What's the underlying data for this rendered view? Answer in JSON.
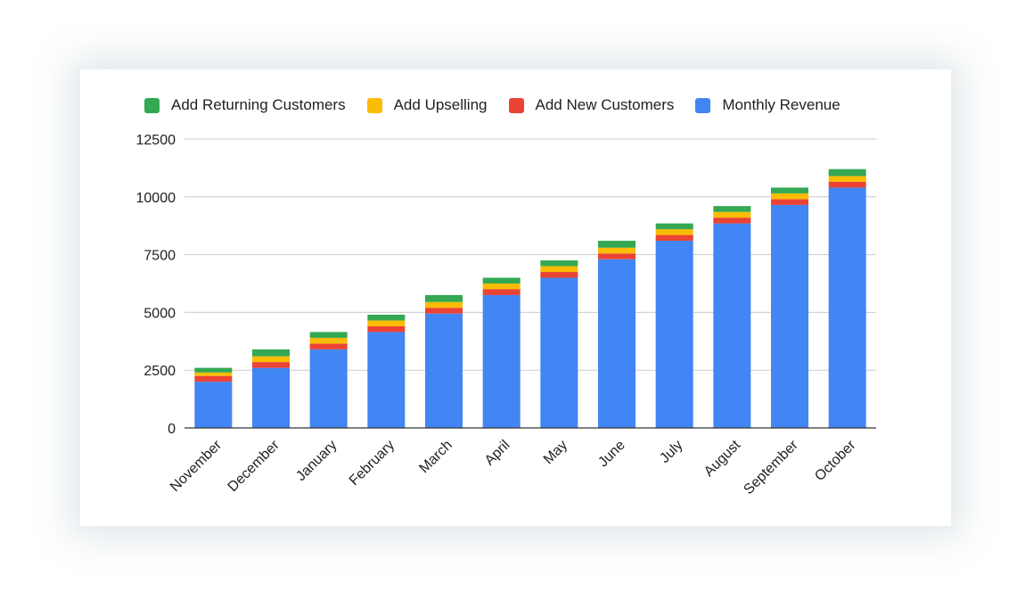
{
  "chart_data": {
    "type": "bar",
    "stacked": true,
    "categories": [
      "November",
      "December",
      "January",
      "February",
      "March",
      "April",
      "May",
      "June",
      "July",
      "August",
      "September",
      "October"
    ],
    "series": [
      {
        "name": "Monthly Revenue",
        "color": "#4285F4",
        "values": [
          2000,
          2600,
          3400,
          4150,
          4950,
          5750,
          6500,
          7300,
          8100,
          8850,
          9650,
          10400
        ]
      },
      {
        "name": "Add New Customers",
        "color": "#EA4335",
        "values": [
          250,
          250,
          250,
          250,
          250,
          250,
          250,
          250,
          250,
          250,
          250,
          250
        ]
      },
      {
        "name": "Add Upselling",
        "color": "#FBBC04",
        "values": [
          150,
          250,
          250,
          250,
          250,
          250,
          250,
          250,
          250,
          250,
          250,
          250
        ]
      },
      {
        "name": "Add Returning Customers",
        "color": "#34A853",
        "values": [
          200,
          300,
          250,
          250,
          300,
          250,
          250,
          300,
          250,
          250,
          250,
          300
        ]
      }
    ],
    "legend_order": [
      "Add Returning Customers",
      "Add Upselling",
      "Add New Customers",
      "Monthly Revenue"
    ],
    "legend_position": "top",
    "y_ticks": [
      0,
      2500,
      5000,
      7500,
      10000,
      12500
    ],
    "ylim": [
      0,
      12500
    ],
    "grid": true,
    "title": "",
    "xlabel": "",
    "ylabel": ""
  }
}
